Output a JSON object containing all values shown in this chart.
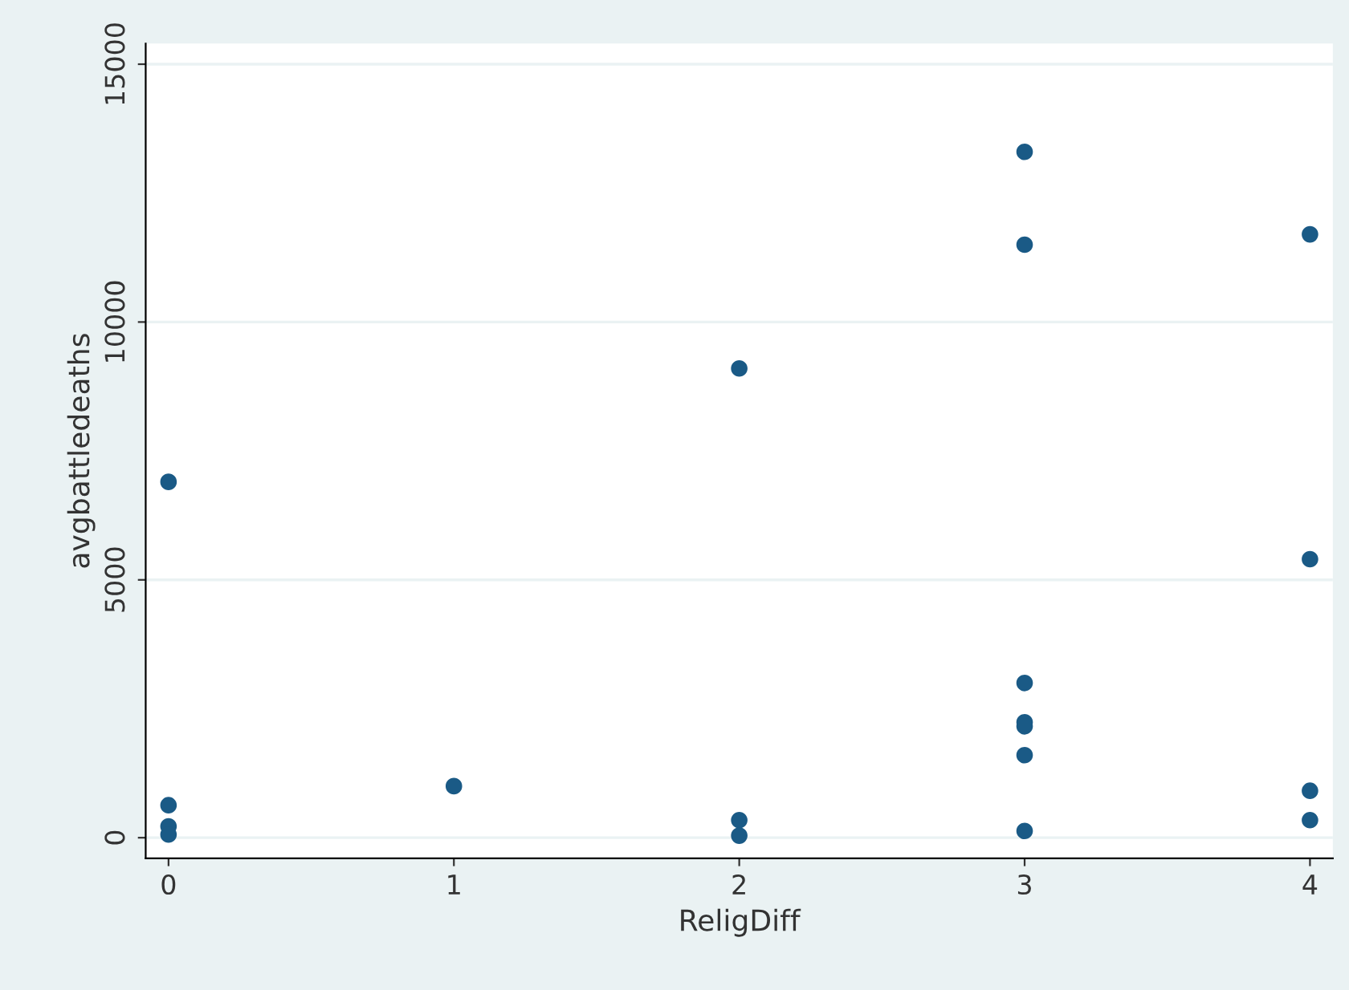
{
  "chart_data": {
    "type": "scatter",
    "xlabel": "ReligDiff",
    "ylabel": "avgbattledeaths",
    "x": [
      0,
      0,
      0,
      0,
      1,
      2,
      2,
      2,
      3,
      3,
      3,
      3,
      3,
      3,
      3,
      4,
      4,
      4,
      4
    ],
    "values": [
      6900,
      630,
      220,
      60,
      1000,
      9100,
      340,
      40,
      13300,
      11500,
      3000,
      2240,
      2160,
      1600,
      130,
      11700,
      5400,
      910,
      340
    ],
    "color": "#1a5a86",
    "marker": "circle",
    "xlim": [
      -0.08,
      4.08
    ],
    "xticks": [
      0,
      1,
      2,
      3,
      4
    ],
    "ylim": [
      -400,
      15400
    ],
    "yticks": [
      0,
      5000,
      10000,
      15000
    ],
    "grid": "y"
  }
}
